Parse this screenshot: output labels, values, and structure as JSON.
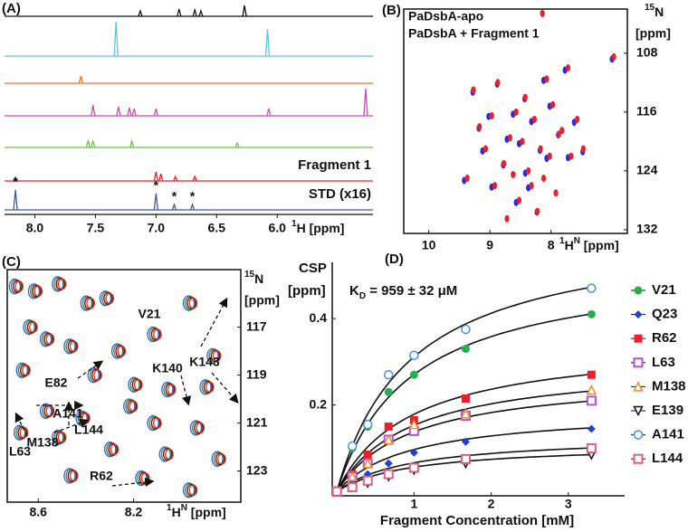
{
  "chart_data": [
    {
      "type": "line",
      "panel_label": "(A)",
      "x_label": [
        "1",
        "H [ppm]"
      ],
      "xlim": [
        8.25,
        5.21
      ],
      "xticks": [
        {
          "value": 8,
          "label": "8.0"
        },
        {
          "value": 7.5,
          "label": "7.5"
        },
        {
          "value": 7,
          "label": "7.0"
        },
        {
          "value": 6.5,
          "label": "6.5"
        },
        {
          "value": 6,
          "label": "6.0"
        }
      ],
      "series": [
        {
          "color": "#111111",
          "x": [
            7.13,
            6.81,
            6.68,
            6.63,
            6.27
          ],
          "values": [
            6,
            8,
            7,
            6,
            12
          ]
        },
        {
          "color": "#5bc8d8",
          "x": [
            7.33,
            6.08
          ],
          "values": [
            38,
            30
          ]
        },
        {
          "color": "#e8743b",
          "x": [
            7.62
          ],
          "values": [
            8
          ]
        },
        {
          "color": "#c64fb0",
          "x": [
            7.52,
            7.31,
            7.22,
            7.18,
            7.0,
            6.07,
            5.27
          ],
          "values": [
            12,
            10,
            9,
            8,
            8,
            8,
            30
          ]
        },
        {
          "color": "#6cc24a",
          "x": [
            7.56,
            7.52,
            7.2,
            6.33
          ],
          "values": [
            8,
            7,
            7,
            5
          ]
        },
        {
          "name": "Fragment 1",
          "color": "#e8212b",
          "x": [
            8.16,
            7.0,
            6.96,
            6.84,
            6.68
          ],
          "values": [
            4,
            10,
            8,
            5,
            5
          ]
        },
        {
          "name": "STD (x16)",
          "color": "#3c5aa6",
          "x": [
            8.16,
            7.0,
            6.85,
            6.7
          ],
          "values": [
            22,
            18,
            6,
            6
          ]
        }
      ],
      "annotations": [
        "*",
        "*",
        "*",
        "*"
      ]
    },
    {
      "type": "scatter",
      "panel_label": "(B)",
      "x_label": [
        "1",
        "H",
        "N",
        " [ppm]"
      ],
      "y_label": [
        "15",
        "N"
      ],
      "y_unit": "[ppm]",
      "xlim": [
        10.41,
        6.75
      ],
      "ylim": [
        132.5,
        102
      ],
      "xticks": [
        10,
        9,
        8
      ],
      "yticks": [
        108,
        116,
        124,
        132
      ],
      "series": [
        {
          "name": "PaDsbA-apo",
          "color": "#2b2bd9",
          "x": [
            9.28,
            8.88,
            8.12,
            7.77,
            8.43,
            8.62,
            9.02,
            9.18,
            8.32,
            8.02,
            7.62,
            7.88,
            8.72,
            8.52,
            8.18,
            8.07,
            7.48,
            9.12,
            8.78,
            8.42,
            7.72,
            8.37,
            8.97,
            8.57,
            8.23,
            7.0,
            9.42
          ],
          "values": [
            113.3,
            112.2,
            111.7,
            110.3,
            114.2,
            116.3,
            116.6,
            118.2,
            117.3,
            115.2,
            117.4,
            119.1,
            119.7,
            120.3,
            121.2,
            122.3,
            121.4,
            121.3,
            123.2,
            124.3,
            122.2,
            126.3,
            126.2,
            128.3,
            129.6,
            108.8,
            125.3
          ]
        },
        {
          "name": "PaDsbA + Fragment 1",
          "color": "#e8212b",
          "x": [
            8.17,
            9.3,
            8.9,
            8.1,
            7.75,
            8.45,
            8.6,
            9.0,
            9.2,
            8.3,
            8.0,
            7.6,
            7.9,
            8.7,
            8.5,
            8.2,
            8.05,
            7.85,
            7.5,
            9.1,
            8.8,
            8.4,
            8.15,
            7.7,
            8.35,
            8.95,
            8.55,
            8.25,
            7.95,
            8.65,
            7.0,
            9.4,
            8.75
          ],
          "values": [
            102.6,
            113,
            112,
            111.5,
            110,
            114,
            116,
            116.5,
            118,
            117,
            115,
            117,
            119,
            119.5,
            120,
            121,
            122,
            118.5,
            121,
            121,
            123,
            124,
            125,
            122,
            126,
            126,
            128,
            129.5,
            127,
            124.5,
            108.5,
            125,
            130.5
          ]
        }
      ]
    },
    {
      "type": "contour",
      "panel_label": "(C)",
      "x_label": [
        "1",
        "H",
        "N",
        " [ppm]"
      ],
      "y_label": [
        "15",
        "N"
      ],
      "y_unit": "[ppm]",
      "xlim": [
        8.73,
        7.75
      ],
      "ylim": [
        124.3,
        114.6
      ],
      "xticks": [
        {
          "value": 8.6,
          "label": "8.6"
        },
        {
          "value": 8.2,
          "label": "8.2"
        }
      ],
      "yticks": [
        117,
        119,
        121,
        123
      ],
      "colors": [
        "#3a5fcd",
        "#2e8b57",
        "#8b0000",
        "#d2301f"
      ],
      "x": [
        8.68,
        8.6,
        8.5,
        8.38,
        8.3,
        8.62,
        8.55,
        8.45,
        8.25,
        8.1,
        7.95,
        7.85,
        8.65,
        8.35,
        8.18,
        8.04,
        7.88,
        8.55,
        8.4,
        8.2,
        8.1,
        7.92,
        8.66,
        8.5,
        8.28,
        8.05,
        7.83,
        8.45,
        8.15,
        7.95
      ],
      "values": [
        115.3,
        115.5,
        115.2,
        116,
        115.8,
        117,
        117.5,
        117.8,
        118,
        117.3,
        116,
        118.2,
        118.8,
        119,
        119.4,
        119.6,
        119.5,
        120.5,
        120.8,
        120.3,
        121,
        121.2,
        121.4,
        121.6,
        122.1,
        122.3,
        122.5,
        123.2,
        123.3,
        123.8
      ],
      "annotations": [
        "V21",
        "E82",
        "K140",
        "K143",
        "A141",
        "L144",
        "L63",
        "M138",
        "R62"
      ]
    },
    {
      "type": "scatter",
      "panel_label": "(D)",
      "x_label": "Fragment Concentration [mM]",
      "y_label": "CSP",
      "y_unit": "[ppm]",
      "annotation": [
        "K",
        "D",
        " = 959 ± 32 μM"
      ],
      "fit_kd": 0.959,
      "xlim": [
        -0.06,
        3.73
      ],
      "ylim": [
        -0.01,
        0.53
      ],
      "xticks": [
        1,
        2,
        3
      ],
      "yticks": [
        0.2,
        0.4
      ],
      "x": [
        0,
        0.2,
        0.4,
        0.67,
        1.0,
        1.67,
        3.3
      ],
      "series": [
        {
          "name": "V21",
          "color": "#22b14c",
          "marker": "circle",
          "fit_max": 0.53,
          "values": [
            0,
            0.1,
            0.15,
            0.23,
            0.27,
            0.33,
            0.41
          ]
        },
        {
          "name": "Q23",
          "color": "#1f3fd6",
          "marker": "diamond",
          "fit_max": 0.19,
          "values": [
            0,
            0.02,
            0.04,
            0.065,
            0.09,
            0.115,
            0.145
          ]
        },
        {
          "name": "R62",
          "color": "#e8212b",
          "marker": "square",
          "fit_max": 0.35,
          "values": [
            0,
            0.04,
            0.085,
            0.15,
            0.165,
            0.215,
            0.27
          ]
        },
        {
          "name": "L63",
          "color": "#b84fd0",
          "marker": "square-open",
          "fit_max": 0.27,
          "values": [
            0,
            0.035,
            0.065,
            0.12,
            0.14,
            0.175,
            0.21
          ]
        },
        {
          "name": "M138",
          "color": "#f08a24",
          "marker": "triangle-open",
          "fit_max": 0.3,
          "values": [
            0,
            0.035,
            0.065,
            0.12,
            0.155,
            0.18,
            0.235
          ]
        },
        {
          "name": "E139",
          "color": "#111111",
          "marker": "triangle-down-open",
          "fit_max": 0.11,
          "values": [
            0,
            0.01,
            0.02,
            0.035,
            0.05,
            0.065,
            0.085
          ]
        },
        {
          "name": "A141",
          "color": "#4a90d9",
          "marker": "circle-open",
          "fit_max": 0.61,
          "values": [
            0,
            0.105,
            0.155,
            0.27,
            0.315,
            0.375,
            0.47
          ]
        },
        {
          "name": "L144",
          "color": "#d9607f",
          "marker": "square-open",
          "fit_max": 0.13,
          "values": [
            0,
            0.01,
            0.025,
            0.04,
            0.055,
            0.075,
            0.1
          ]
        }
      ]
    }
  ]
}
